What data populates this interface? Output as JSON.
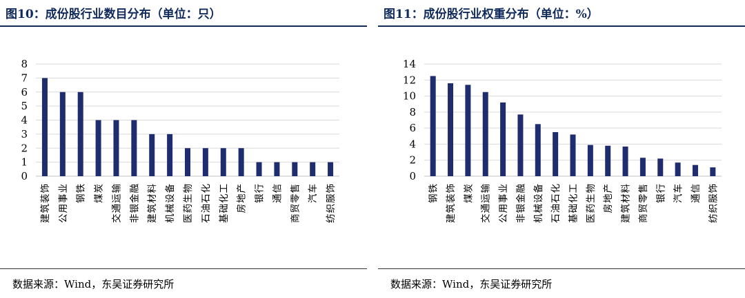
{
  "charts": [
    {
      "title": "图10：成份股行业数目分布（单位：只）",
      "source": "数据来源：Wind，东吴证券研究所",
      "chart_data": {
        "type": "bar",
        "title": "",
        "xlabel": "",
        "ylabel": "",
        "ylim": [
          0,
          8
        ],
        "yticks": [
          0,
          1,
          2,
          3,
          4,
          5,
          6,
          7,
          8
        ],
        "grid": true,
        "color": "#1f2d6e",
        "categories": [
          "建筑装饰",
          "公用事业",
          "钢铁",
          "煤炭",
          "交通运输",
          "非银金融",
          "建筑材料",
          "机械设备",
          "医药生物",
          "石油石化",
          "基础化工",
          "房地产",
          "银行",
          "通信",
          "商贸零售",
          "汽车",
          "纺织服饰"
        ],
        "values": [
          7,
          6,
          6,
          4,
          4,
          4,
          3,
          3,
          2,
          2,
          2,
          2,
          1,
          1,
          1,
          1,
          1
        ]
      }
    },
    {
      "title": "图11：成份股行业权重分布（单位：%）",
      "source": "数据来源：Wind，东吴证券研究所",
      "chart_data": {
        "type": "bar",
        "title": "",
        "xlabel": "",
        "ylabel": "",
        "ylim": [
          0,
          14
        ],
        "yticks": [
          0,
          2,
          4,
          6,
          8,
          10,
          12,
          14
        ],
        "grid": true,
        "color": "#1f2d6e",
        "categories": [
          "钢铁",
          "建筑装饰",
          "煤炭",
          "交通运输",
          "公用事业",
          "非银金融",
          "机械设备",
          "石油石化",
          "基础化工",
          "医药生物",
          "房地产",
          "建筑材料",
          "商贸零售",
          "银行",
          "汽车",
          "通信",
          "纺织服饰"
        ],
        "values": [
          12.5,
          11.6,
          11.4,
          10.5,
          9.2,
          7.7,
          6.5,
          5.5,
          5.2,
          3.9,
          3.8,
          3.7,
          2.3,
          2.2,
          1.7,
          1.4,
          1.1
        ]
      }
    }
  ]
}
